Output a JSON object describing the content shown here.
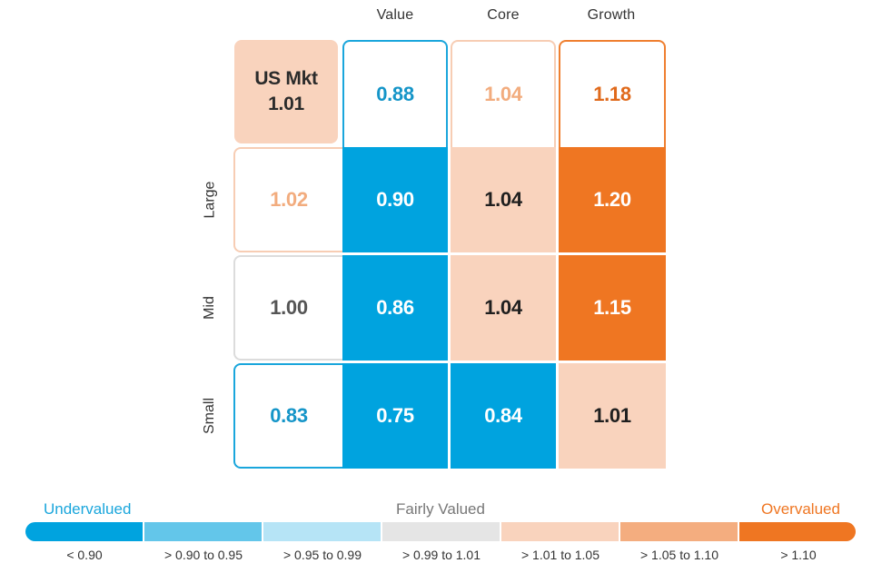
{
  "chart_data": {
    "type": "heatmap",
    "title": "",
    "columns": [
      "Value",
      "Core",
      "Growth"
    ],
    "rows": [
      "Large",
      "Mid",
      "Small"
    ],
    "market": {
      "label": "US Mkt",
      "value": "1.01"
    },
    "column_totals": [
      "0.88",
      "1.04",
      "1.18"
    ],
    "row_totals": [
      "1.02",
      "1.00",
      "0.83"
    ],
    "values": [
      [
        "0.90",
        "1.04",
        "1.20"
      ],
      [
        "0.86",
        "1.04",
        "1.15"
      ],
      [
        "0.75",
        "0.84",
        "1.01"
      ]
    ],
    "legend": {
      "left_label": "Undervalued",
      "center_label": "Fairly Valued",
      "right_label": "Overvalued",
      "bins": [
        "< 0.90",
        "> 0.90 to 0.95",
        "> 0.95 to 0.99",
        "> 0.99 to 1.01",
        "> 1.01 to 1.05",
        "> 1.05 to 1.10",
        "> 1.10"
      ],
      "bin_colors": [
        "#00a3df",
        "#63c6ea",
        "#b6e4f6",
        "#e5e5e5",
        "#f9d3bd",
        "#f4ad7f",
        "#ef7622"
      ]
    }
  }
}
